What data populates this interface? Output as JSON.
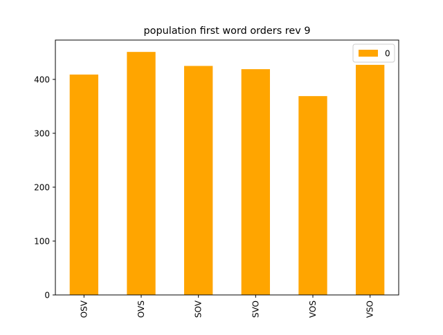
{
  "chart_data": {
    "type": "bar",
    "title": "population first word orders rev 9",
    "categories": [
      "OSV",
      "OVS",
      "SOV",
      "SVO",
      "VOS",
      "VSO"
    ],
    "series": [
      {
        "name": "0",
        "values": [
          409,
          451,
          425,
          419,
          369,
          427
        ],
        "color": "#ffa500"
      }
    ],
    "xlabel": "",
    "ylabel": "",
    "ylim": [
      0,
      473
    ],
    "yticks": [
      0,
      100,
      200,
      300,
      400
    ],
    "grid": false,
    "legend_position": "top-right",
    "x_tick_rotation": "vertical"
  }
}
